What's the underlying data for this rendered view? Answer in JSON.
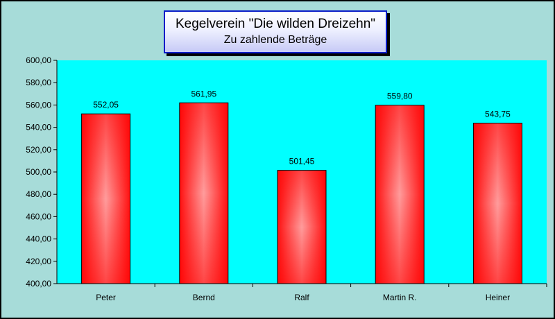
{
  "chart_data": {
    "type": "bar",
    "title": "Kegelverein \"Die wilden Dreizehn\"",
    "subtitle": "Zu zahlende Beträge",
    "categories": [
      "Peter",
      "Bernd",
      "Ralf",
      "Martin R.",
      "Heiner"
    ],
    "values": [
      552.05,
      561.95,
      501.45,
      559.8,
      543.75
    ],
    "value_labels": [
      "552,05",
      "561,95",
      "501,45",
      "559,80",
      "543,75"
    ],
    "ylim": [
      400,
      600
    ],
    "ytick_step": 20,
    "ytick_labels": [
      "400,00",
      "420,00",
      "440,00",
      "460,00",
      "480,00",
      "500,00",
      "520,00",
      "540,00",
      "560,00",
      "580,00",
      "600,00"
    ],
    "xlabel": "",
    "ylabel": "",
    "grid": false,
    "legend": "none"
  },
  "colors": {
    "plot_background": "#00ffff",
    "outer_background": "#a7dcd9",
    "bar_edge": "#ff0000",
    "bar_center": "#ff9a9a",
    "title_border": "#0a1cc8"
  }
}
